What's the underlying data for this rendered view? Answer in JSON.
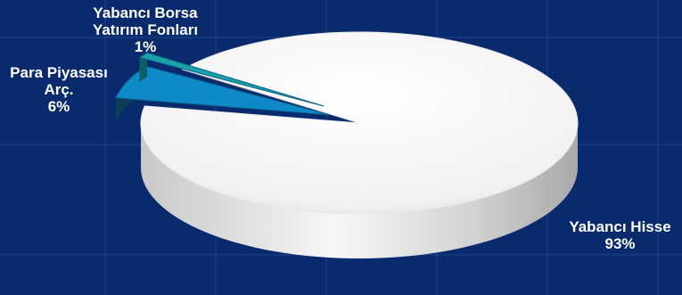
{
  "chart_data": {
    "type": "pie",
    "style": "3d",
    "title": "",
    "legend": "none",
    "slices": [
      {
        "name": "Yabancı Hisse",
        "value": 93,
        "label": "93%",
        "color": "#f4f4f4"
      },
      {
        "name": "Para Piyasası Arç.",
        "value": 6,
        "label": "6%",
        "color": "#0e8ac8"
      },
      {
        "name": "Yabancı Borsa Yatırım Fonları",
        "value": 1,
        "label": "1%",
        "color": "#17a1a8"
      }
    ],
    "label_lines": [
      [
        "Yabancı Hisse",
        "93%"
      ],
      [
        "Para Piyasası",
        "Arç.",
        "6%"
      ],
      [
        "Yabancı Borsa",
        "Yatırım Fonları",
        "1%"
      ]
    ],
    "background_color": "#0a2a6e",
    "grid": true
  }
}
